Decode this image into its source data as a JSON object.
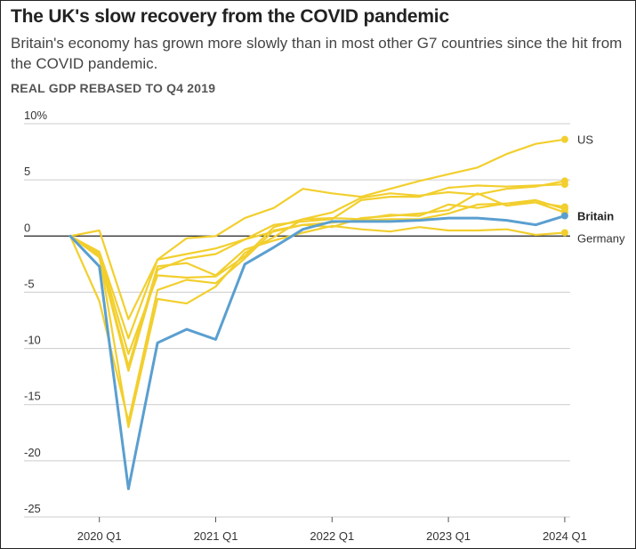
{
  "title": "The UK's slow recovery from the COVID pandemic",
  "subtitle": "Britain's economy has grown more slowly than in most other G7 countries since the hit from the COVID pandemic.",
  "chart_data": {
    "type": "line",
    "title": "The UK's slow recovery from the COVID pandemic",
    "subtitle": "Britain's economy has grown more slowly than in most other G7 countries since the hit from the COVID pandemic.",
    "ylabel": "REAL GDP REBASED TO Q4 2019",
    "xlabel": "",
    "ylim": [
      -25,
      10
    ],
    "y_ticks": [
      10,
      5,
      0,
      -5,
      -10,
      -15,
      -20,
      -25
    ],
    "y_tick_labels": [
      "10%",
      "5",
      "0",
      "-5",
      "-10",
      "-15",
      "-20",
      "-25"
    ],
    "x": [
      "2019 Q4",
      "2020 Q1",
      "2020 Q2",
      "2020 Q3",
      "2020 Q4",
      "2021 Q1",
      "2021 Q2",
      "2021 Q3",
      "2021 Q4",
      "2022 Q1",
      "2022 Q2",
      "2022 Q3",
      "2022 Q4",
      "2023 Q1",
      "2023 Q2",
      "2023 Q3",
      "2023 Q4",
      "2024 Q1"
    ],
    "x_tick_labels": [
      "2020 Q1",
      "2021 Q1",
      "2022 Q1",
      "2023 Q1",
      "2024 Q1"
    ],
    "grid": true,
    "colors": {
      "highlight": "#5a9fd0",
      "others": "#f2cf2e",
      "zero_line": "#222222",
      "grid": "#cccccc"
    },
    "series": [
      {
        "name": "US",
        "highlight": false,
        "end_label": true,
        "values": [
          0,
          -1.4,
          -9.1,
          -2.1,
          -0.2,
          0,
          1.6,
          2.5,
          4.2,
          3.8,
          3.5,
          4.2,
          4.9,
          5.5,
          6.1,
          7.3,
          8.2,
          8.6
        ]
      },
      {
        "name": "",
        "highlight": false,
        "end_label": false,
        "values": [
          0,
          -1.5,
          -10.5,
          -3.5,
          -3.7,
          -3.6,
          -1.8,
          0.8,
          1.5,
          2.1,
          3.4,
          3.8,
          3.6,
          3.9,
          3.7,
          4.2,
          4.4,
          4.9
        ]
      },
      {
        "name": "",
        "highlight": false,
        "end_label": false,
        "values": [
          0,
          -1.9,
          -12.0,
          -3.0,
          -2.0,
          -1.6,
          -0.3,
          1.0,
          1.3,
          1.5,
          3.2,
          3.5,
          3.5,
          4.3,
          4.5,
          4.4,
          4.5,
          4.6
        ]
      },
      {
        "name": "",
        "highlight": false,
        "end_label": false,
        "values": [
          0,
          -1.7,
          -17.0,
          -5.6,
          -6.0,
          -4.5,
          -1.5,
          -0.1,
          1.5,
          1.6,
          1.5,
          1.9,
          1.8,
          2.8,
          2.5,
          2.9,
          3.2,
          2.4
        ]
      },
      {
        "name": "",
        "highlight": false,
        "end_label": false,
        "values": [
          0,
          0.5,
          -7.4,
          -2.1,
          -1.6,
          -1.1,
          -0.3,
          0.4,
          1.0,
          1.2,
          1.4,
          1.5,
          1.5,
          2.0,
          2.8,
          2.9,
          3.0,
          2.6
        ]
      },
      {
        "name": "",
        "highlight": false,
        "end_label": false,
        "values": [
          0,
          -5.8,
          -16.5,
          -4.8,
          -3.9,
          -4.2,
          -2.0,
          0.5,
          1.0,
          0.8,
          1.6,
          1.8,
          2.0,
          2.3,
          3.8,
          2.7,
          3.0,
          2.1
        ]
      },
      {
        "name": "Germany",
        "highlight": false,
        "end_label": true,
        "values": [
          0,
          -1.8,
          -11.6,
          -2.7,
          -2.4,
          -3.5,
          -1.2,
          -0.4,
          0.3,
          0.9,
          0.6,
          0.4,
          0.8,
          0.5,
          0.5,
          0.6,
          0.1,
          0.3
        ]
      },
      {
        "name": "Britain",
        "highlight": true,
        "end_label": true,
        "values": [
          0,
          -2.7,
          -22.5,
          -9.5,
          -8.3,
          -9.2,
          -2.5,
          -1.0,
          0.6,
          1.3,
          1.3,
          1.3,
          1.4,
          1.6,
          1.6,
          1.4,
          1.0,
          1.8
        ]
      }
    ]
  }
}
